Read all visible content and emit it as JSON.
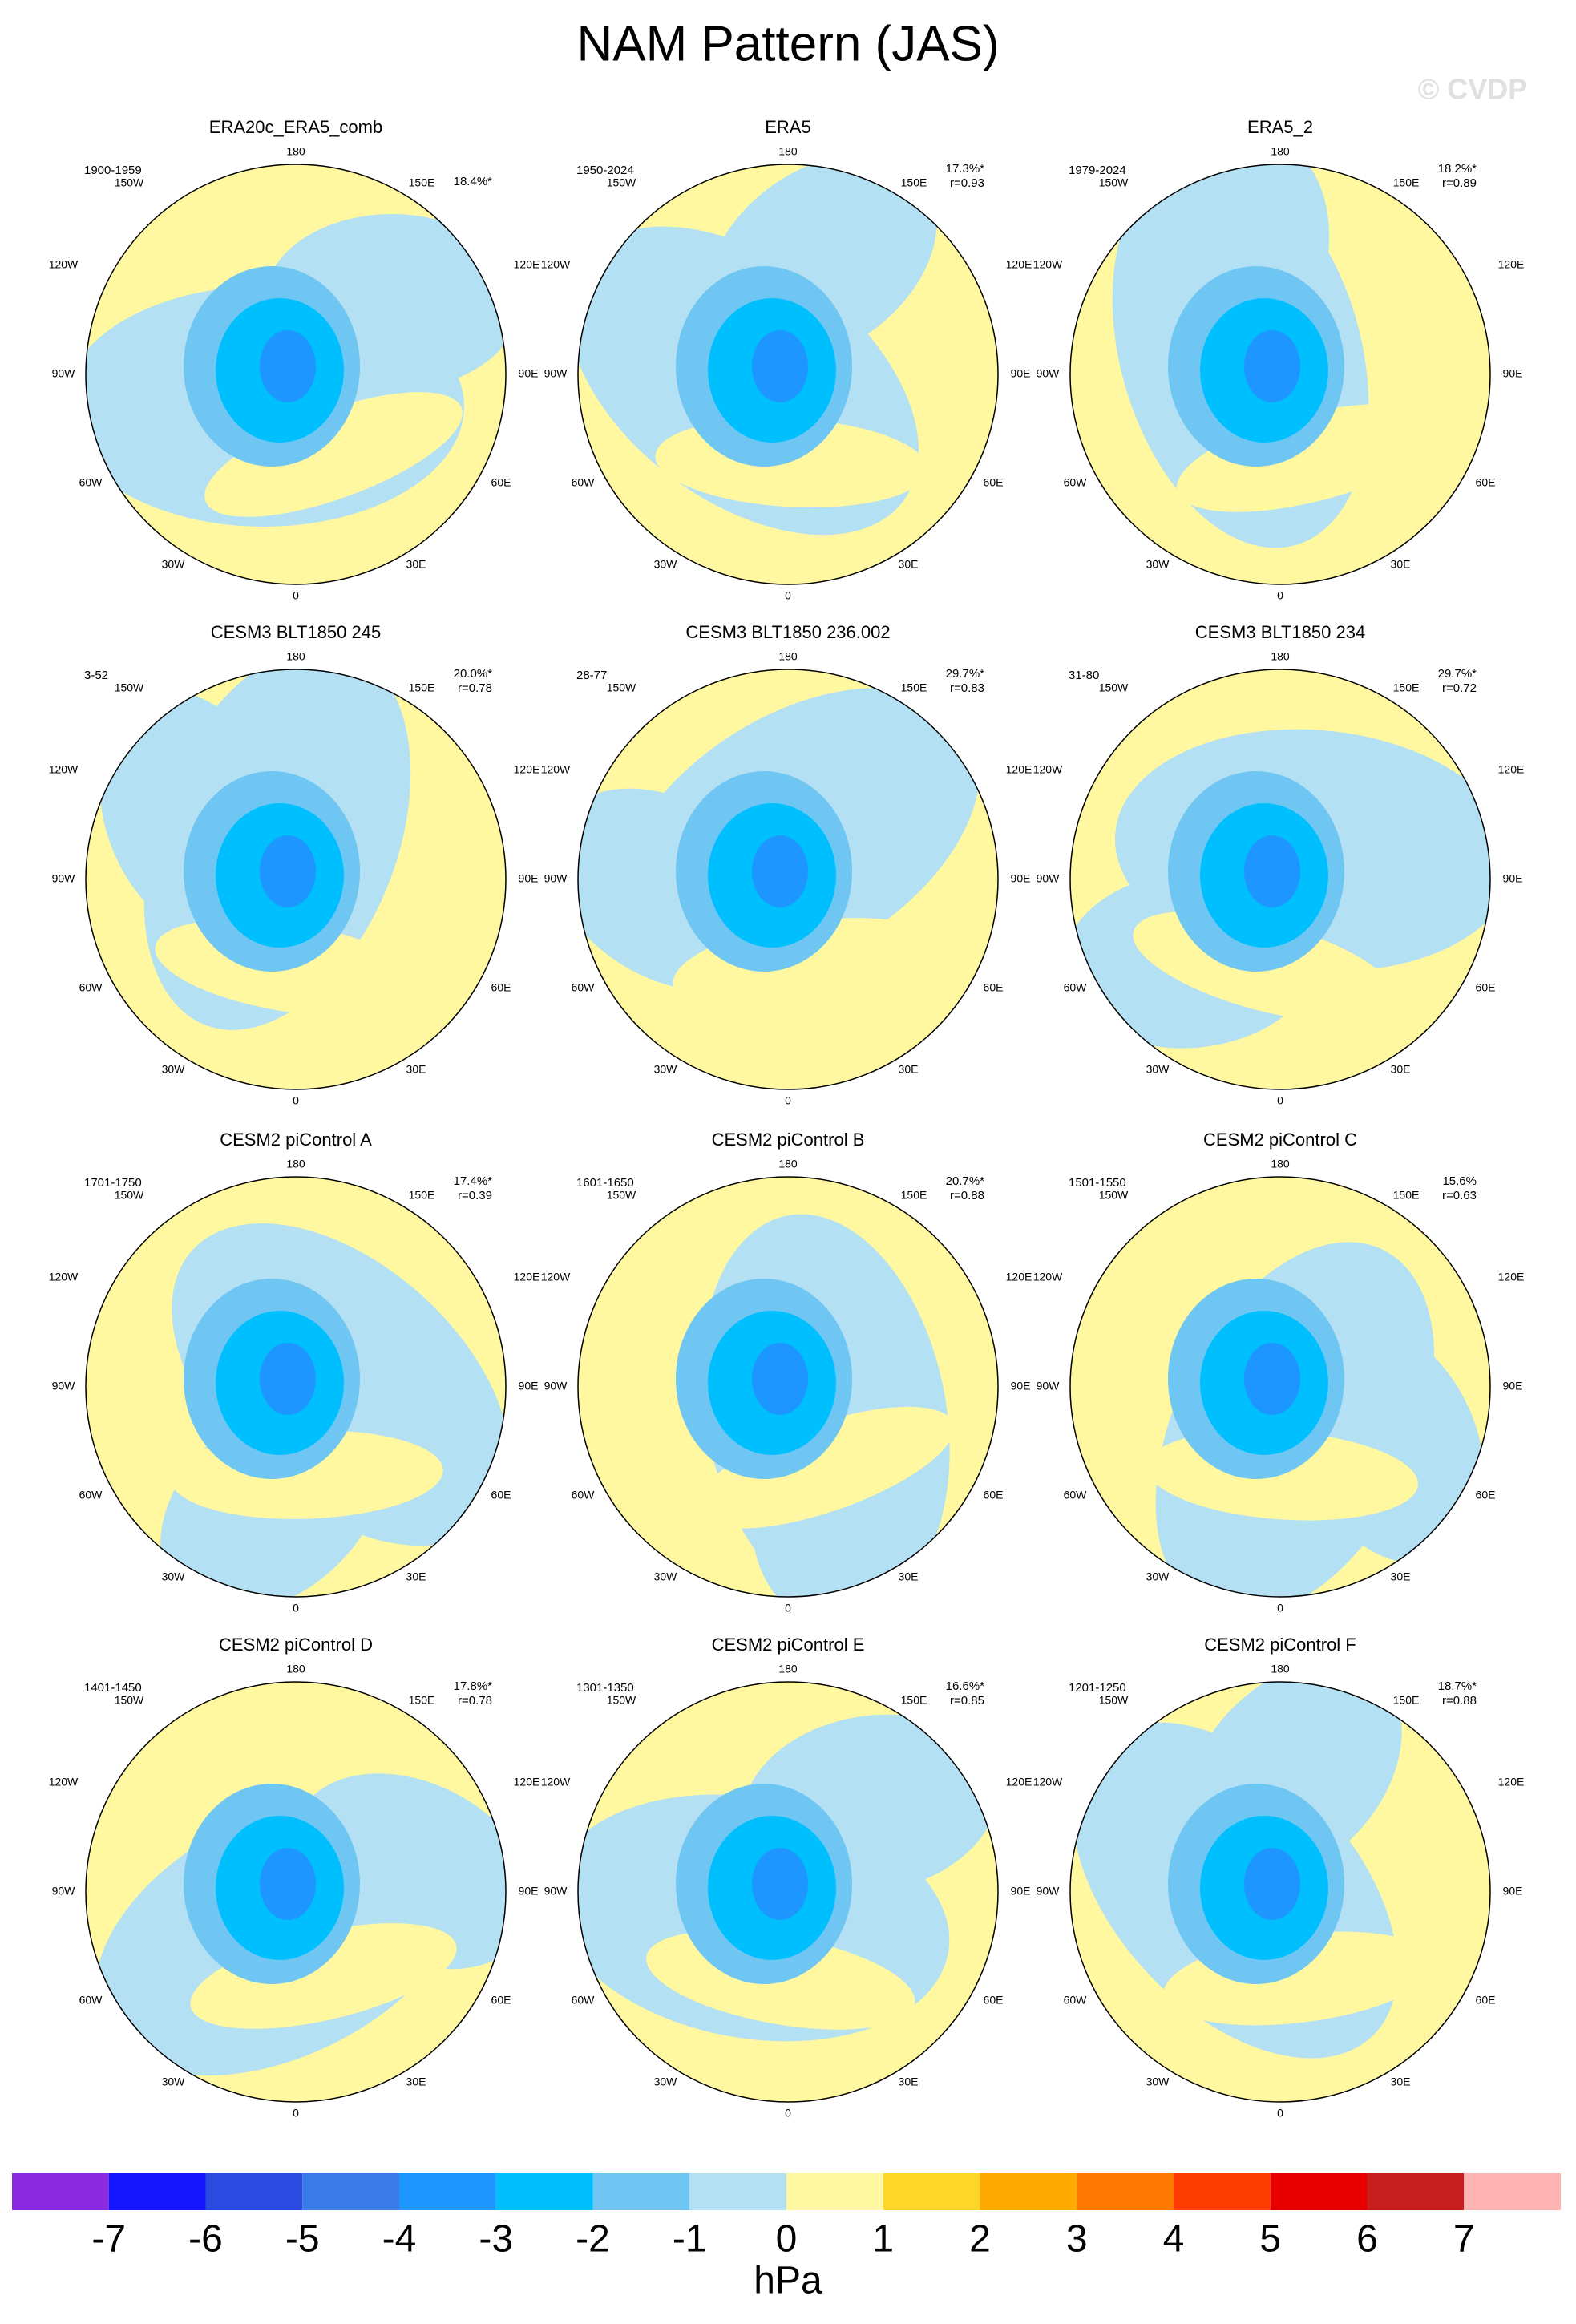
{
  "header": {
    "title": "NAM Pattern (JAS)",
    "watermark": "© CVDP"
  },
  "longitude_labels": {
    "n180": "180",
    "w150": "150W",
    "e150": "150E",
    "w120": "120W",
    "e120": "120E",
    "w90": "90W",
    "e90": "90E",
    "w60": "60W",
    "e60": "60E",
    "w30": "30W",
    "e30": "30E",
    "n0": "0"
  },
  "panels": [
    {
      "title": "ERA20c_ERA5_comb",
      "period": "1900-1959",
      "variance": "18.4%*"
    },
    {
      "title": "ERA5",
      "period": "1950-2024",
      "variance": "17.3%*",
      "r": "r=0.93"
    },
    {
      "title": "ERA5_2",
      "period": "1979-2024",
      "variance": "18.2%*",
      "r": "r=0.89"
    },
    {
      "title": "CESM3 BLT1850 245",
      "period": "3-52",
      "variance": "20.0%*",
      "r": "r=0.78"
    },
    {
      "title": "CESM3 BLT1850 236.002",
      "period": "28-77",
      "variance": "29.7%*",
      "r": "r=0.83"
    },
    {
      "title": "CESM3 BLT1850 234",
      "period": "31-80",
      "variance": "29.7%*",
      "r": "r=0.72"
    },
    {
      "title": "CESM2 piControl A",
      "period": "1701-1750",
      "variance": "17.4%*",
      "r": "r=0.39"
    },
    {
      "title": "CESM2 piControl B",
      "period": "1601-1650",
      "variance": "20.7%*",
      "r": "r=0.88"
    },
    {
      "title": "CESM2 piControl C",
      "period": "1501-1550",
      "variance": "15.6%",
      "r": "r=0.63"
    },
    {
      "title": "CESM2 piControl D",
      "period": "1401-1450",
      "variance": "17.8%*",
      "r": "r=0.78"
    },
    {
      "title": "CESM2 piControl E",
      "period": "1301-1350",
      "variance": "16.6%*",
      "r": "r=0.85"
    },
    {
      "title": "CESM2 piControl F",
      "period": "1201-1250",
      "variance": "18.7%*",
      "r": "r=0.88"
    }
  ],
  "colorbar": {
    "label": "hPa",
    "ticks": [
      -7,
      -6,
      -5,
      -4,
      -3,
      -2,
      -1,
      0,
      1,
      2,
      3,
      4,
      5,
      6,
      7
    ],
    "colors": [
      "#8a2be2",
      "#1414ff",
      "#2a4be0",
      "#3a7ae8",
      "#1e96ff",
      "#00bfff",
      "#70c6f2",
      "#b4e0f4",
      "#fff8a0",
      "#fcd628",
      "#ffaa00",
      "#ff7a00",
      "#ff3c00",
      "#e80000",
      "#c81e1e",
      "#ffb4b4"
    ]
  }
}
